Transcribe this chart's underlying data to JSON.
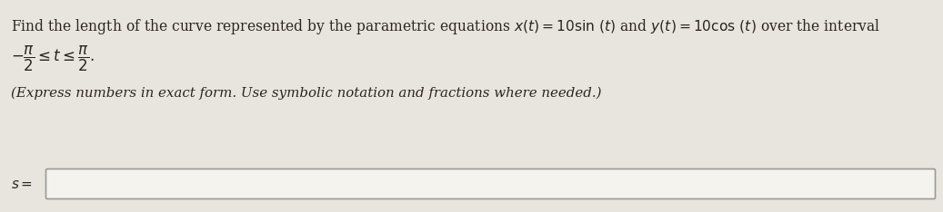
{
  "background_color": "#e8e5df",
  "text_color": "#2a2520",
  "box_fill_color": "#f5f3ee",
  "box_edge_color": "#999999",
  "font_size_line1": 11.2,
  "font_size_line2": 11.0,
  "font_size_line3": 10.8,
  "font_size_label": 11.0,
  "line1_text": "Find the length of the curve represented by the parametric equations ",
  "line1_math1": "x(t) = 10\\sin (t)",
  "line1_mid": " and ",
  "line1_math2": "y(t) = 10\\cos (t)",
  "line1_end": " over the interval",
  "line2_math": "-\\dfrac{\\pi}{2} \\leq t \\leq \\dfrac{\\pi}{2}.",
  "line3_text": "(Express numbers in exact form. Use symbolic notation and fractions where needed.)",
  "label": "s ="
}
